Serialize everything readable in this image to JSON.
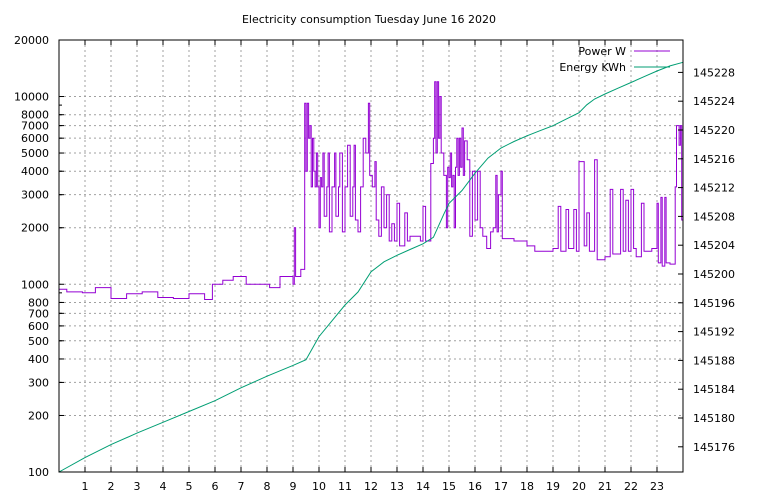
{
  "chart_data": {
    "type": "line",
    "title": "Electricity consumption Tuesday June 16 2020",
    "xlabel": "",
    "ylabel": "",
    "y2label": "",
    "x_range": [
      0,
      24
    ],
    "y_range": [
      100,
      20000
    ],
    "y_scale": "log",
    "y2_range": [
      145172.5,
      145232.5
    ],
    "grid": true,
    "legend_position": "top-right",
    "x_ticks": [
      1,
      2,
      3,
      4,
      5,
      6,
      7,
      8,
      9,
      10,
      11,
      12,
      13,
      14,
      15,
      16,
      17,
      18,
      19,
      20,
      21,
      22,
      23
    ],
    "y_ticks": [
      {
        "value": 100,
        "label": "100"
      },
      {
        "value": 200,
        "label": "200"
      },
      {
        "value": 300,
        "label": "300"
      },
      {
        "value": 400,
        "label": "400"
      },
      {
        "value": 500,
        "label": "500"
      },
      {
        "value": 600,
        "label": "600"
      },
      {
        "value": 700,
        "label": "700"
      },
      {
        "value": 800,
        "label": "800"
      },
      {
        "value": 1000,
        "label": "1000"
      },
      {
        "value": 2000,
        "label": "2000"
      },
      {
        "value": 3000,
        "label": "3000"
      },
      {
        "value": 4000,
        "label": "4000"
      },
      {
        "value": 5000,
        "label": "5000"
      },
      {
        "value": 6000,
        "label": "6000"
      },
      {
        "value": 7000,
        "label": "7000"
      },
      {
        "value": 8000,
        "label": "8000"
      },
      {
        "value": 10000,
        "label": "10000"
      },
      {
        "value": 20000,
        "label": "20000"
      }
    ],
    "y2_ticks": [
      145176,
      145180,
      145184,
      145188,
      145192,
      145196,
      145200,
      145204,
      145208,
      145212,
      145216,
      145220,
      145224,
      145228
    ],
    "series": [
      {
        "name": "Power W",
        "color": "#9400d3",
        "axis": "left",
        "style": "steps",
        "points": [
          [
            0.0,
            940
          ],
          [
            0.3,
            910
          ],
          [
            0.9,
            900
          ],
          [
            1.4,
            960
          ],
          [
            2.0,
            840
          ],
          [
            2.6,
            890
          ],
          [
            3.2,
            910
          ],
          [
            3.8,
            850
          ],
          [
            4.4,
            840
          ],
          [
            5.0,
            890
          ],
          [
            5.6,
            830
          ],
          [
            5.9,
            1000
          ],
          [
            6.3,
            1050
          ],
          [
            6.7,
            1100
          ],
          [
            7.2,
            1000
          ],
          [
            8.1,
            960
          ],
          [
            8.5,
            1100
          ],
          [
            9.0,
            1000
          ],
          [
            9.05,
            2000
          ],
          [
            9.1,
            1100
          ],
          [
            9.3,
            1200
          ],
          [
            9.45,
            9200
          ],
          [
            9.5,
            4000
          ],
          [
            9.55,
            9200
          ],
          [
            9.6,
            6000
          ],
          [
            9.65,
            7000
          ],
          [
            9.7,
            3300
          ],
          [
            9.75,
            6000
          ],
          [
            9.8,
            4000
          ],
          [
            9.85,
            3300
          ],
          [
            9.9,
            5000
          ],
          [
            9.95,
            3300
          ],
          [
            10.0,
            2000
          ],
          [
            10.05,
            3700
          ],
          [
            10.1,
            3300
          ],
          [
            10.15,
            5000
          ],
          [
            10.2,
            2300
          ],
          [
            10.3,
            3300
          ],
          [
            10.35,
            5000
          ],
          [
            10.4,
            1900
          ],
          [
            10.5,
            3300
          ],
          [
            10.6,
            5000
          ],
          [
            10.65,
            2300
          ],
          [
            10.75,
            3300
          ],
          [
            10.8,
            5000
          ],
          [
            10.9,
            1900
          ],
          [
            11.0,
            3300
          ],
          [
            11.1,
            5500
          ],
          [
            11.2,
            2300
          ],
          [
            11.3,
            3300
          ],
          [
            11.35,
            5500
          ],
          [
            11.4,
            2200
          ],
          [
            11.5,
            1900
          ],
          [
            11.6,
            3300
          ],
          [
            11.7,
            6000
          ],
          [
            11.8,
            5000
          ],
          [
            11.9,
            9200
          ],
          [
            11.95,
            3800
          ],
          [
            12.05,
            3300
          ],
          [
            12.15,
            4500
          ],
          [
            12.2,
            2200
          ],
          [
            12.3,
            1800
          ],
          [
            12.4,
            3300
          ],
          [
            12.5,
            2000
          ],
          [
            12.6,
            3000
          ],
          [
            12.7,
            1700
          ],
          [
            12.8,
            2100
          ],
          [
            12.9,
            1700
          ],
          [
            13.0,
            2700
          ],
          [
            13.1,
            1600
          ],
          [
            13.3,
            2400
          ],
          [
            13.4,
            1700
          ],
          [
            13.5,
            1800
          ],
          [
            13.9,
            1700
          ],
          [
            14.0,
            2600
          ],
          [
            14.1,
            1700
          ],
          [
            14.3,
            4400
          ],
          [
            14.4,
            6000
          ],
          [
            14.45,
            12000
          ],
          [
            14.5,
            5000
          ],
          [
            14.55,
            12000
          ],
          [
            14.6,
            6000
          ],
          [
            14.65,
            10000
          ],
          [
            14.7,
            5000
          ],
          [
            14.8,
            3800
          ],
          [
            14.9,
            2000
          ],
          [
            14.95,
            4200
          ],
          [
            15.0,
            3700
          ],
          [
            15.05,
            5000
          ],
          [
            15.1,
            3300
          ],
          [
            15.15,
            3800
          ],
          [
            15.2,
            2000
          ],
          [
            15.25,
            4200
          ],
          [
            15.3,
            6000
          ],
          [
            15.35,
            3800
          ],
          [
            15.4,
            6000
          ],
          [
            15.45,
            4200
          ],
          [
            15.5,
            6800
          ],
          [
            15.55,
            3800
          ],
          [
            15.6,
            5800
          ],
          [
            15.7,
            4600
          ],
          [
            15.8,
            1800
          ],
          [
            15.9,
            4000
          ],
          [
            16.0,
            2200
          ],
          [
            16.1,
            4000
          ],
          [
            16.2,
            2000
          ],
          [
            16.3,
            1800
          ],
          [
            16.45,
            1550
          ],
          [
            16.6,
            1900
          ],
          [
            16.7,
            2000
          ],
          [
            16.8,
            3800
          ],
          [
            16.85,
            1900
          ],
          [
            16.9,
            3000
          ],
          [
            17.0,
            4000
          ],
          [
            17.05,
            1750
          ],
          [
            17.5,
            1700
          ],
          [
            18.0,
            1600
          ],
          [
            18.3,
            1500
          ],
          [
            19.0,
            1550
          ],
          [
            19.2,
            2600
          ],
          [
            19.3,
            1500
          ],
          [
            19.5,
            2500
          ],
          [
            19.6,
            1550
          ],
          [
            19.8,
            2500
          ],
          [
            19.9,
            1500
          ],
          [
            20.0,
            4500
          ],
          [
            20.2,
            1600
          ],
          [
            20.3,
            2400
          ],
          [
            20.4,
            1500
          ],
          [
            20.6,
            4600
          ],
          [
            20.7,
            1350
          ],
          [
            21.0,
            1400
          ],
          [
            21.2,
            3200
          ],
          [
            21.3,
            1450
          ],
          [
            21.6,
            3200
          ],
          [
            21.7,
            1500
          ],
          [
            21.8,
            2800
          ],
          [
            21.9,
            1500
          ],
          [
            22.0,
            3200
          ],
          [
            22.1,
            1550
          ],
          [
            22.2,
            1400
          ],
          [
            22.4,
            2700
          ],
          [
            22.5,
            1500
          ],
          [
            22.8,
            1550
          ],
          [
            23.0,
            2700
          ],
          [
            23.05,
            1300
          ],
          [
            23.15,
            2900
          ],
          [
            23.2,
            1250
          ],
          [
            23.3,
            2900
          ],
          [
            23.35,
            1300
          ],
          [
            23.5,
            1280
          ],
          [
            23.7,
            3300
          ],
          [
            23.75,
            7000
          ],
          [
            23.85,
            5500
          ],
          [
            23.9,
            7000
          ],
          [
            23.95,
            2200
          ],
          [
            24.0,
            2200
          ]
        ]
      },
      {
        "name": "Energy KWh",
        "color": "#009e73",
        "axis": "right",
        "style": "line",
        "points": [
          [
            0.0,
            145172.5
          ],
          [
            1.0,
            145174.5
          ],
          [
            2.0,
            145176.3
          ],
          [
            3.0,
            145177.9
          ],
          [
            4.0,
            145179.4
          ],
          [
            5.0,
            145180.9
          ],
          [
            6.0,
            145182.4
          ],
          [
            7.0,
            145184.2
          ],
          [
            8.0,
            145185.8
          ],
          [
            9.0,
            145187.3
          ],
          [
            9.5,
            145188.1
          ],
          [
            10.0,
            145191.3
          ],
          [
            10.5,
            145193.5
          ],
          [
            11.0,
            145195.7
          ],
          [
            11.5,
            145197.5
          ],
          [
            12.0,
            145200.3
          ],
          [
            12.5,
            145201.7
          ],
          [
            13.0,
            145202.6
          ],
          [
            13.5,
            145203.4
          ],
          [
            14.0,
            145204.2
          ],
          [
            14.4,
            145205.1
          ],
          [
            14.8,
            145208.3
          ],
          [
            15.0,
            145209.8
          ],
          [
            15.5,
            145211.6
          ],
          [
            16.0,
            145214.0
          ],
          [
            16.5,
            145216.1
          ],
          [
            17.0,
            145217.5
          ],
          [
            17.5,
            145218.4
          ],
          [
            18.0,
            145219.2
          ],
          [
            18.5,
            145219.9
          ],
          [
            19.0,
            145220.6
          ],
          [
            19.5,
            145221.5
          ],
          [
            20.0,
            145222.4
          ],
          [
            20.3,
            145223.5
          ],
          [
            20.6,
            145224.3
          ],
          [
            21.0,
            145225.0
          ],
          [
            21.5,
            145225.8
          ],
          [
            22.0,
            145226.6
          ],
          [
            22.5,
            145227.4
          ],
          [
            23.0,
            145228.2
          ],
          [
            23.5,
            145228.9
          ],
          [
            24.0,
            145229.4
          ]
        ]
      }
    ]
  }
}
